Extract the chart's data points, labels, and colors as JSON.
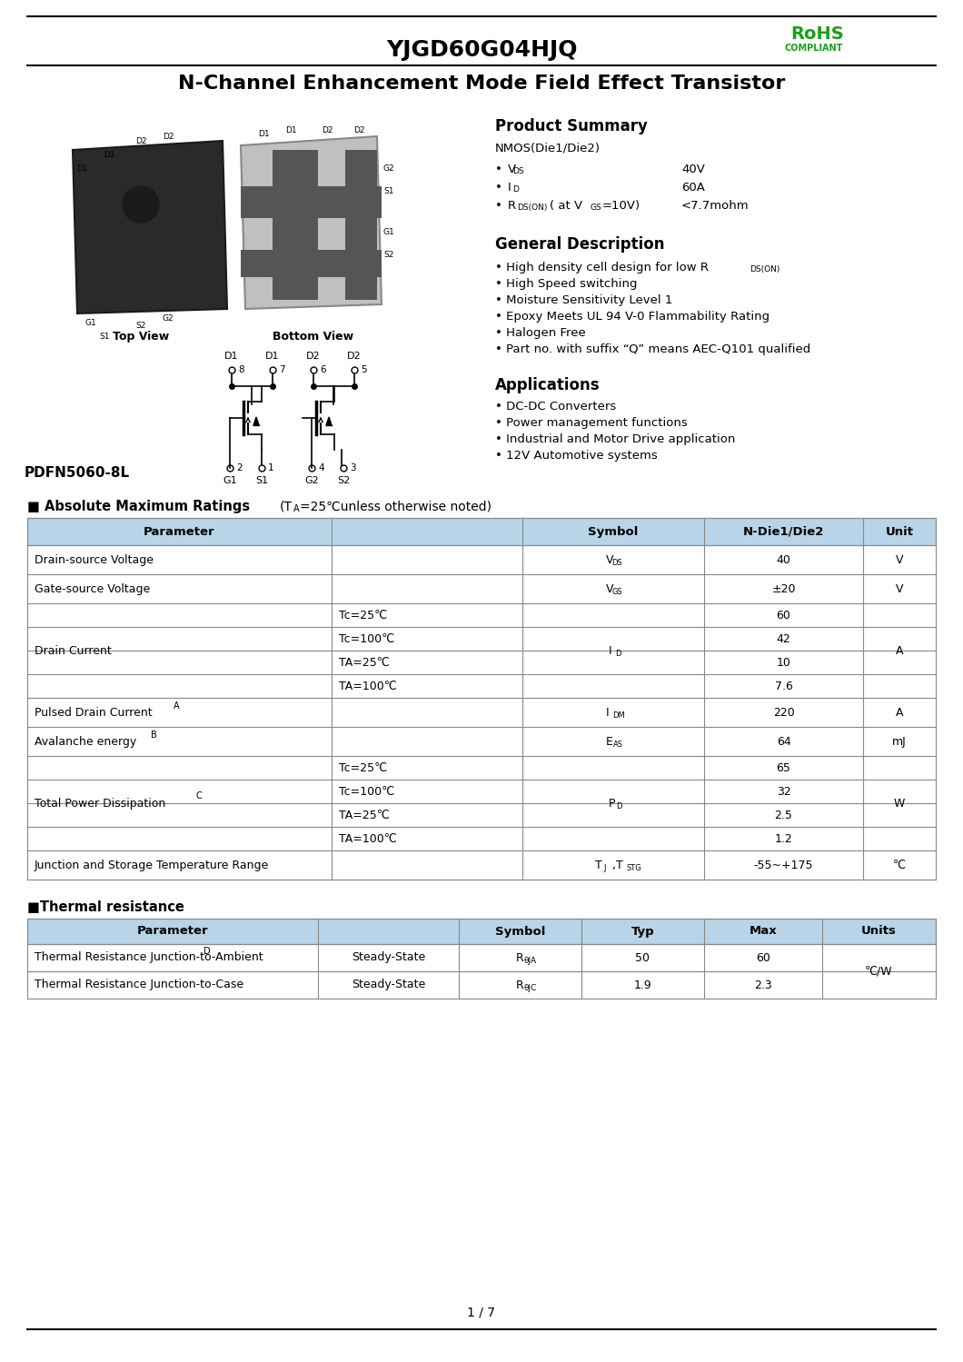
{
  "title": "YJGD60G04HJQ",
  "rohs_text": "RoHS",
  "compliant_text": "COMPLIANT",
  "main_title": "N-Channel Enhancement Mode Field Effect Transistor",
  "product_summary_title": "Product Summary",
  "product_summary_sub": "NMOS(Die1/Die2)",
  "vds_val": "40V",
  "id_val": "60A",
  "rds_val": "<7.7mohm",
  "gen_desc_title": "General Description",
  "gen_desc_items": [
    "High density cell design for low R",
    "High Speed switching",
    "Moisture Sensitivity Level 1",
    "Epoxy Meets UL 94 V-0 Flammability Rating",
    "Halogen Free",
    "Part no. with suffix “Q” means AEC-Q101 qualified"
  ],
  "package_label": "PDFN5060-8L",
  "top_view_label": "Top View",
  "bottom_view_label": "Bottom View",
  "applications_title": "Applications",
  "applications": [
    "DC-DC Converters",
    "Power management functions",
    "Industrial and Motor Drive application",
    "12V Automotive systems"
  ],
  "abs_max_title": "■ Absolute Maximum Ratings ",
  "abs_max_subtitle_pre": "(T",
  "abs_max_subtitle_sub": "A",
  "abs_max_subtitle_post": "=25℃unless otherwise noted)",
  "abs_header_param": "Parameter",
  "abs_header_symbol": "Symbol",
  "abs_header_ndie": "N-Die1/Die2",
  "abs_header_unit": "Unit",
  "thermal_title": "■Thermal resistance",
  "th_header_param": "Parameter",
  "th_header_symbol": "Symbol",
  "th_header_typ": "Typ",
  "th_header_max": "Max",
  "th_header_units": "Units",
  "page_number": "1 / 7",
  "header_bg": "#b8d4e8",
  "table_line_color": "#888888",
  "rohs_color": "#1a9e1a"
}
